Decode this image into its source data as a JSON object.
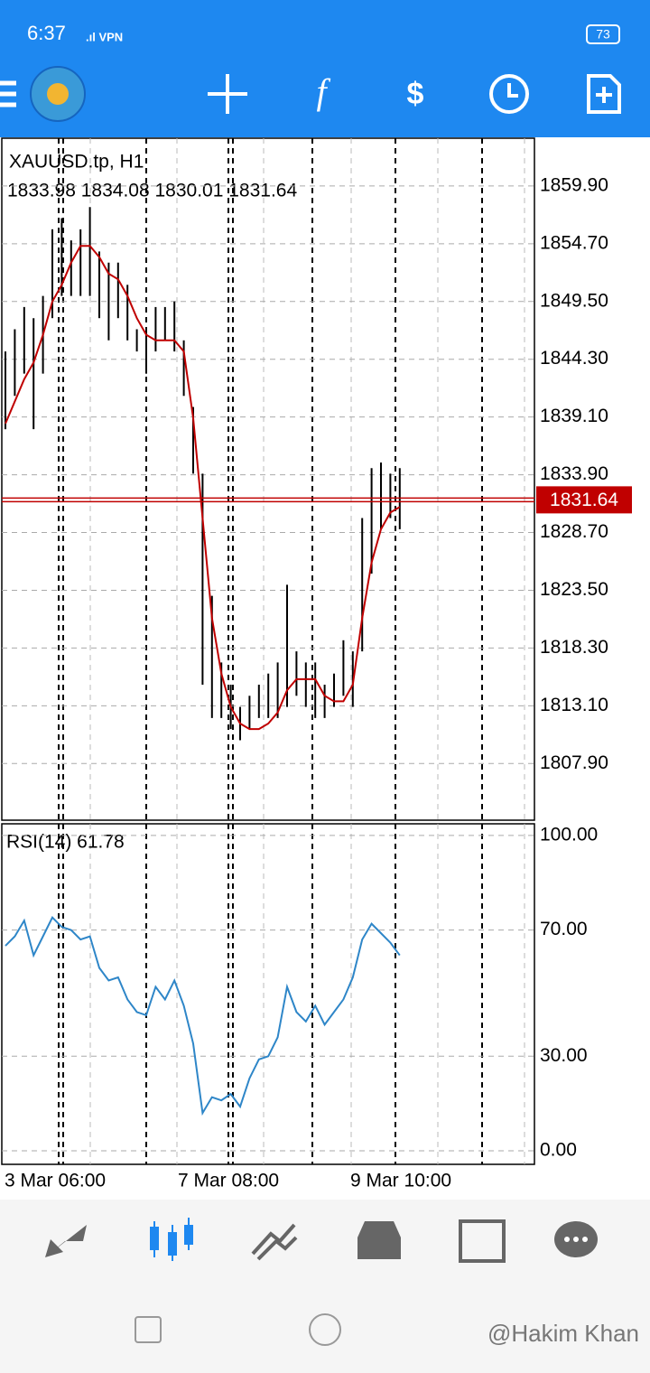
{
  "status_bar": {
    "time": "6:37",
    "battery": "73"
  },
  "symbol": "XAUUSD.tp, H1",
  "ohlc": "1833.98 1834.08 1830.01 1831.64",
  "x_labels": [
    "3 Mar 06:00",
    "7 Mar 08:00",
    "9 Mar 10:00"
  ],
  "watermark": "@Hakim Khan",
  "chart_data": [
    {
      "type": "hilo",
      "color": "#000000",
      "ma_color": "#c00000",
      "last_color": "#c00000",
      "ylim": [
        1802.8,
        1864.2
      ],
      "yticks": [
        {
          "value": 1859.9,
          "label": "1859.90"
        },
        {
          "value": 1854.7,
          "label": "1854.70"
        },
        {
          "value": 1849.5,
          "label": "1849.50"
        },
        {
          "value": 1844.3,
          "label": "1844.30"
        },
        {
          "value": 1839.1,
          "label": "1839.10"
        },
        {
          "value": 1833.9,
          "label": "1833.90"
        },
        {
          "value": 1828.7,
          "label": "1828.70"
        },
        {
          "value": 1823.5,
          "label": "1823.50"
        },
        {
          "value": 1818.3,
          "label": "1818.30"
        },
        {
          "value": 1813.1,
          "label": "1813.10"
        },
        {
          "value": 1807.9,
          "label": "1807.90"
        }
      ],
      "grid": true,
      "last_price": 1831.64,
      "high": [
        1845,
        1847,
        1849,
        1848,
        1850,
        1856,
        1857,
        1855,
        1856,
        1858,
        1854,
        1853,
        1853,
        1851,
        1847,
        1847,
        1849,
        1849,
        1849.5,
        1846,
        1840,
        1834,
        1823,
        1817,
        1815,
        1813,
        1814,
        1815,
        1816,
        1817,
        1824,
        1818,
        1817,
        1817,
        1815,
        1816,
        1819,
        1818,
        1830,
        1834.5,
        1835,
        1834,
        1834.5
      ],
      "low": [
        1838,
        1841,
        1843,
        1838,
        1843,
        1848,
        1850,
        1850,
        1850,
        1850,
        1848,
        1846,
        1848,
        1846,
        1845,
        1843,
        1845,
        1846,
        1845,
        1841,
        1834,
        1815,
        1812,
        1812,
        1811,
        1810,
        1811,
        1812,
        1812,
        1812,
        1813,
        1814,
        1813,
        1812,
        1812,
        1813,
        1814,
        1813,
        1818,
        1825,
        1829,
        1830,
        1829
      ],
      "ma_values": [
        1838.5,
        1840.5,
        1842.5,
        1844,
        1846.5,
        1849.5,
        1851,
        1853,
        1854.5,
        1854.5,
        1853.5,
        1852,
        1851.5,
        1850,
        1848,
        1846.5,
        1846,
        1846,
        1846,
        1845,
        1839,
        1830,
        1821,
        1816,
        1813,
        1811.5,
        1811,
        1811,
        1811.5,
        1812.5,
        1814.5,
        1815.5,
        1815.5,
        1815.5,
        1814,
        1813.5,
        1813.5,
        1815,
        1821,
        1826,
        1829,
        1830.5,
        1831
      ]
    },
    {
      "type": "line",
      "title": "RSI(14) 61.78",
      "color": "#2e86c8",
      "ylim": [
        -4.3,
        103.7
      ],
      "yticks": [
        {
          "value": 100,
          "label": "100.00"
        },
        {
          "value": 70,
          "label": "70.00"
        },
        {
          "value": 30,
          "label": "30.00"
        },
        {
          "value": 0,
          "label": "0.00"
        }
      ],
      "grid": true,
      "values": [
        65,
        68,
        73,
        62,
        68,
        74,
        71,
        70,
        67,
        68,
        58,
        54,
        55,
        48,
        44,
        43,
        52,
        48,
        54,
        46,
        34,
        12,
        17,
        16,
        18,
        14,
        23,
        29,
        30,
        36,
        52,
        44,
        41,
        46,
        40,
        44,
        48,
        55,
        67,
        72,
        69,
        66,
        62
      ]
    }
  ]
}
